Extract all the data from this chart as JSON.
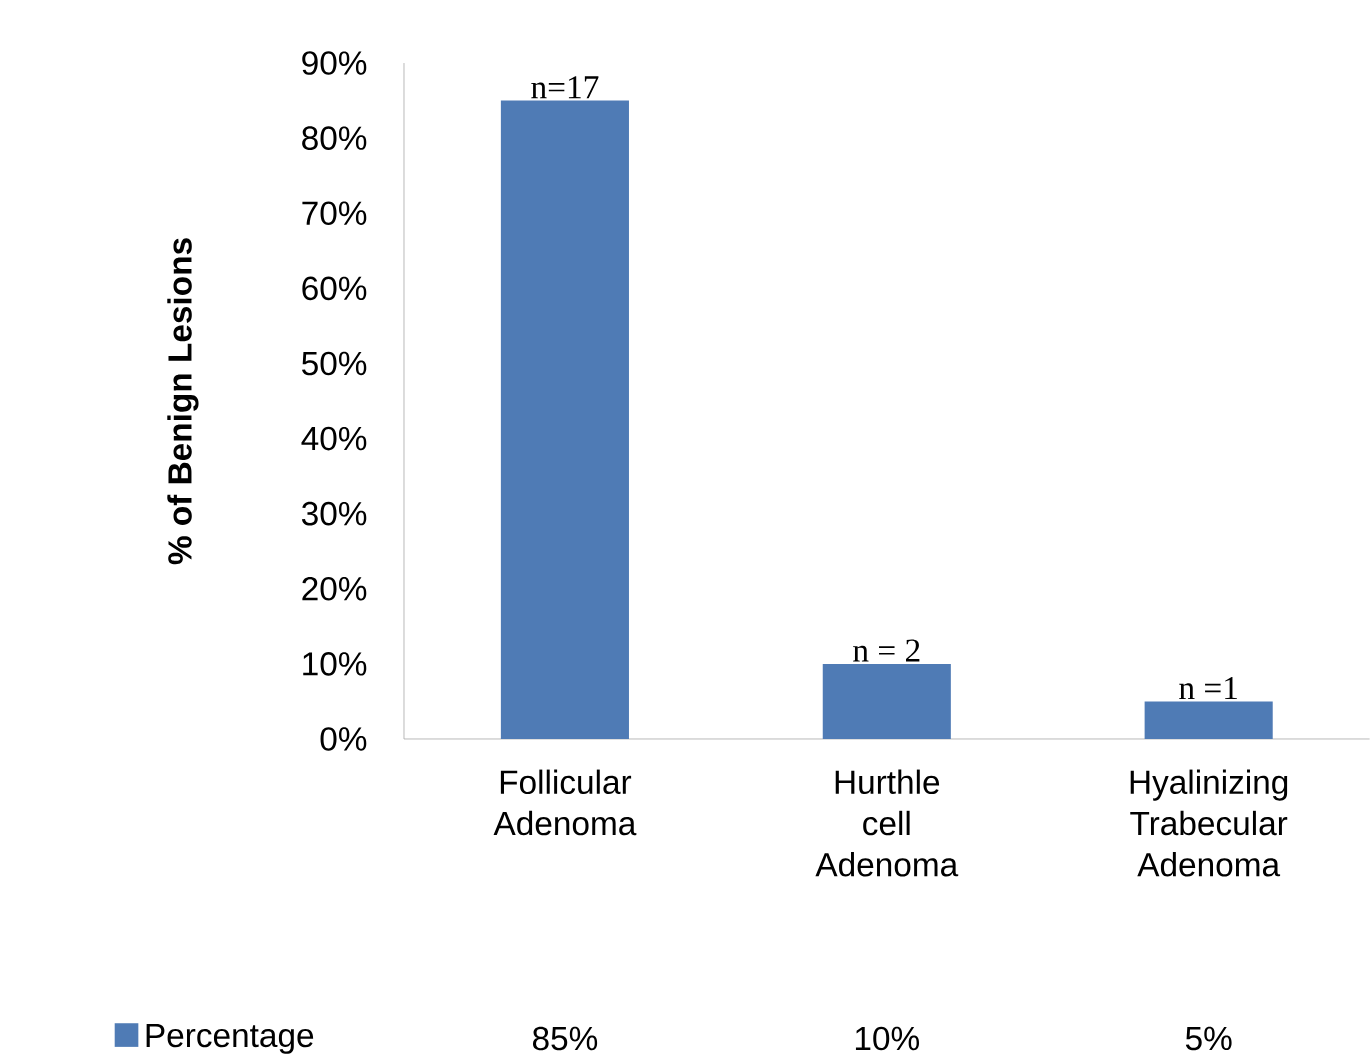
{
  "chart_data": {
    "type": "bar",
    "ylabel": "**% of Benign Lesions**",
    "categories": [
      "Follicular Adenoma",
      "Hurthle cell Adenoma",
      "Hyalinizing Trabecular Adenoma"
    ],
    "series": [
      {
        "name": "Percentage",
        "color": "#4f7bb5",
        "values": [
          85,
          10,
          5
        ],
        "value_labels": [
          "85%",
          "10%",
          "5%"
        ]
      }
    ],
    "ylim": [
      0,
      90
    ],
    "yticks": [
      {
        "value": 0,
        "label": "0%"
      },
      {
        "value": 10,
        "label": "10%"
      },
      {
        "value": 20,
        "label": "20%"
      },
      {
        "value": 30,
        "label": "30%"
      },
      {
        "value": 40,
        "label": "40%"
      },
      {
        "value": 50,
        "label": "50%"
      },
      {
        "value": 60,
        "label": "60%"
      },
      {
        "value": 70,
        "label": "70%"
      },
      {
        "value": 80,
        "label": "80%"
      },
      {
        "value": 90,
        "label": "90%"
      }
    ],
    "annotations": [
      {
        "text": "n=17",
        "x": "Follicular Adenoma",
        "y": 85
      },
      {
        "text": "n = 2",
        "x": "Hurthle cell Adenoma",
        "y": 10
      },
      {
        "text": "n =1",
        "x": "Hyalinizing Trabecular Adenoma",
        "y": 5
      }
    ],
    "legend": "bottom left",
    "grid": false
  }
}
